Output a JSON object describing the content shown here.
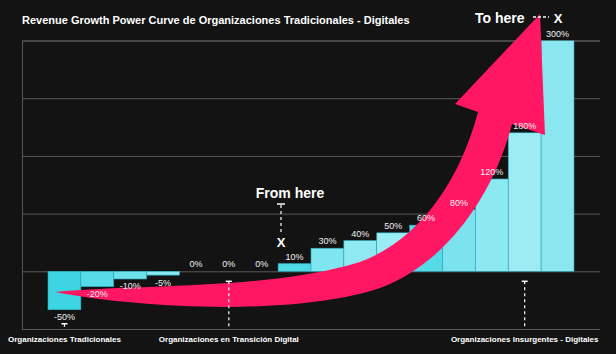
{
  "chart_data": {
    "type": "bar",
    "title": "Revenue Growth Power Curve de Organizaciones Tradicionales - Digitales",
    "categories": [
      "Organizaciones Tradicionales",
      null,
      null,
      null,
      null,
      "Organizaciones en Transición Digital",
      null,
      null,
      null,
      null,
      null,
      null,
      null,
      null,
      "Organizaciones Insurgentes - Digitales",
      null
    ],
    "values": [
      -50,
      -20,
      -10,
      -5,
      0,
      0,
      0,
      10,
      30,
      40,
      50,
      60,
      80,
      120,
      180,
      300
    ],
    "value_labels": [
      "-50%",
      "-20%",
      "-10%",
      "-5%",
      "0%",
      "0%",
      "0%",
      "10%",
      "30%",
      "40%",
      "50%",
      "60%",
      "80%",
      "120%",
      "180%",
      "300%"
    ],
    "colors": [
      "#3dd5e3",
      "#56dbe8",
      "#6ee2ec",
      "#86e8f0",
      "#4fd9e6",
      "#4fd9e6",
      "#4fd9e6",
      "#4fd9e6",
      "#7fe6f0",
      "#8fe9f2",
      "#9aedf4",
      "#55dbe8",
      "#7ae3ee",
      "#8ce8f1",
      "#9decf4",
      "#8ae6ef"
    ],
    "ylim": [
      -75,
      300
    ],
    "yticks": [
      -75,
      0,
      75,
      150,
      225,
      300
    ],
    "grid": true,
    "data_labels": true,
    "tick_labels": "x",
    "annotations": [
      "From here",
      "X",
      "To here",
      "X"
    ]
  }
}
